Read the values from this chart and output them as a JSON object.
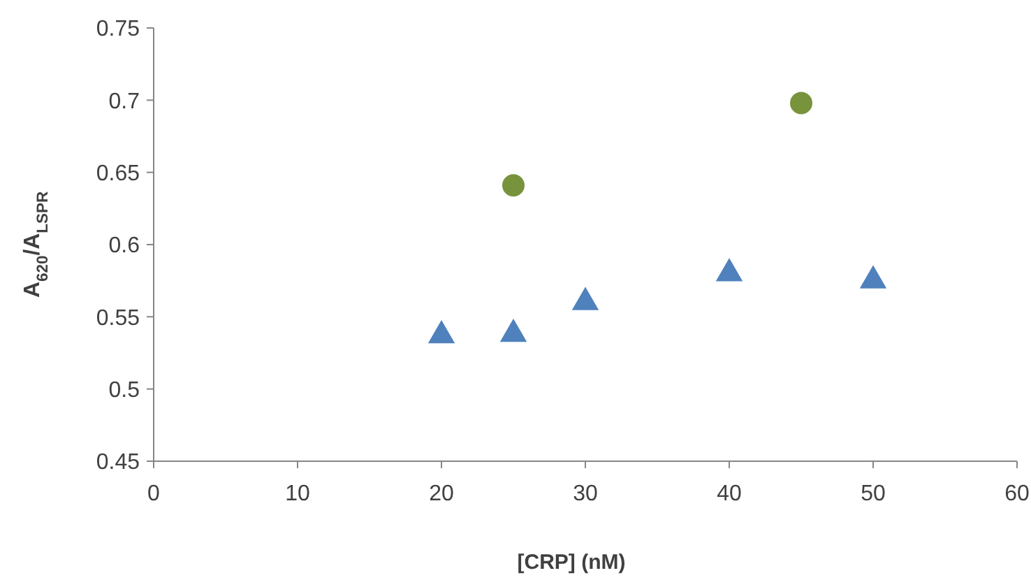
{
  "chart_data": {
    "type": "scatter",
    "xlabel": "[CRP] (nM)",
    "ylabel": "A$_{620}$/A$_{LSPR}$",
    "xlim": [
      0,
      60
    ],
    "xticks": [
      0,
      10,
      20,
      30,
      40,
      50,
      60
    ],
    "ylim": [
      0.45,
      0.75
    ],
    "yticks": [
      0.45,
      0.5,
      0.55,
      0.6,
      0.65,
      0.7,
      0.75
    ],
    "grid": false,
    "series": [
      {
        "color": "#77933c",
        "marker": "circle",
        "x": [
          25,
          45
        ],
        "values": [
          0.641,
          0.698
        ]
      },
      {
        "color": "#4f81bd",
        "marker": "triangle",
        "x": [
          20,
          25,
          30,
          40,
          50
        ],
        "values": [
          0.537,
          0.538,
          0.56,
          0.58,
          0.575
        ]
      }
    ]
  }
}
